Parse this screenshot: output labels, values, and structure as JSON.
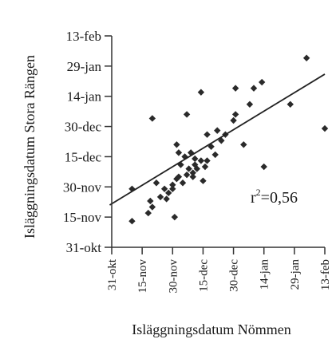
{
  "chart_data": {
    "type": "scatter",
    "xlabel": "Isläggningsdatum Nömmen",
    "ylabel": "Isläggningsdatum Stora Rängen",
    "x_ticks": [
      "31-okt",
      "15-nov",
      "30-nov",
      "15-dec",
      "30-dec",
      "14-jan",
      "29-jan",
      "13-feb"
    ],
    "y_ticks": [
      "31-okt",
      "15-nov",
      "30-nov",
      "15-dec",
      "30-dec",
      "14-jan",
      "29-jan",
      "13-feb"
    ],
    "xlim": [
      "31-okt",
      "13-feb"
    ],
    "ylim": [
      "31-okt",
      "13-feb"
    ],
    "grid": false,
    "points": [
      {
        "x": "10-nov",
        "y": "13-nov"
      },
      {
        "x": "10-nov",
        "y": "29-nov"
      },
      {
        "x": "18-nov",
        "y": "17-nov"
      },
      {
        "x": "19-nov",
        "y": "23-nov"
      },
      {
        "x": "20-nov",
        "y": "20-nov"
      },
      {
        "x": "22-nov",
        "y": "2-dec"
      },
      {
        "x": "24-nov",
        "y": "25-nov"
      },
      {
        "x": "26-nov",
        "y": "29-nov"
      },
      {
        "x": "27-nov",
        "y": "24-nov"
      },
      {
        "x": "28-nov",
        "y": "27-nov"
      },
      {
        "x": "30-nov",
        "y": "29-nov"
      },
      {
        "x": "30-nov",
        "y": "1-dec"
      },
      {
        "x": "1-dec",
        "y": "15-nov"
      },
      {
        "x": "2-dec",
        "y": "4-dec"
      },
      {
        "x": "2-dec",
        "y": "21-dec"
      },
      {
        "x": "3-dec",
        "y": "17-dec"
      },
      {
        "x": "3-dec",
        "y": "5-dec"
      },
      {
        "x": "4-dec",
        "y": "11-dec"
      },
      {
        "x": "5-dec",
        "y": "2-dec"
      },
      {
        "x": "6-dec",
        "y": "15-dec"
      },
      {
        "x": "7-dec",
        "y": "6-dec"
      },
      {
        "x": "8-dec",
        "y": "9-dec"
      },
      {
        "x": "9-dec",
        "y": "17-dec"
      },
      {
        "x": "10-dec",
        "y": "5-dec"
      },
      {
        "x": "10-dec",
        "y": "7-dec"
      },
      {
        "x": "11-dec",
        "y": "11-dec"
      },
      {
        "x": "11-dec",
        "y": "14-dec"
      },
      {
        "x": "12-dec",
        "y": "9-dec"
      },
      {
        "x": "14-dec",
        "y": "13-dec"
      },
      {
        "x": "14-dec",
        "y": "16-jan"
      },
      {
        "x": "15-dec",
        "y": "3-dec"
      },
      {
        "x": "16-dec",
        "y": "10-dec"
      },
      {
        "x": "17-dec",
        "y": "13-dec"
      },
      {
        "x": "17-dec",
        "y": "26-dec"
      },
      {
        "x": "19-dec",
        "y": "20-dec"
      },
      {
        "x": "21-dec",
        "y": "16-dec"
      },
      {
        "x": "22-dec",
        "y": "28-dec"
      },
      {
        "x": "24-dec",
        "y": "23-dec"
      },
      {
        "x": "26-dec",
        "y": "26-dec"
      },
      {
        "x": "20-nov",
        "y": "3-jan"
      },
      {
        "x": "7-dec",
        "y": "5-jan"
      },
      {
        "x": "30-dec",
        "y": "2-jan"
      },
      {
        "x": "31-dec",
        "y": "5-jan"
      },
      {
        "x": "31-dec",
        "y": "18-jan"
      },
      {
        "x": "4-jan",
        "y": "21-dec"
      },
      {
        "x": "7-jan",
        "y": "10-jan"
      },
      {
        "x": "9-jan",
        "y": "18-jan"
      },
      {
        "x": "13-jan",
        "y": "21-jan"
      },
      {
        "x": "14-jan",
        "y": "10-dec"
      },
      {
        "x": "27-jan",
        "y": "10-jan"
      },
      {
        "x": "4-feb",
        "y": "2-feb"
      },
      {
        "x": "13-feb",
        "y": "29-dec"
      }
    ],
    "trendline": {
      "x": [
        "30-okt",
        "13-feb"
      ],
      "y": [
        "21-nov",
        "25-jan"
      ]
    },
    "annotation": "r²=0,56"
  },
  "annotation_parts": {
    "base": "r",
    "sup": "2",
    "rest": "=0,56"
  }
}
